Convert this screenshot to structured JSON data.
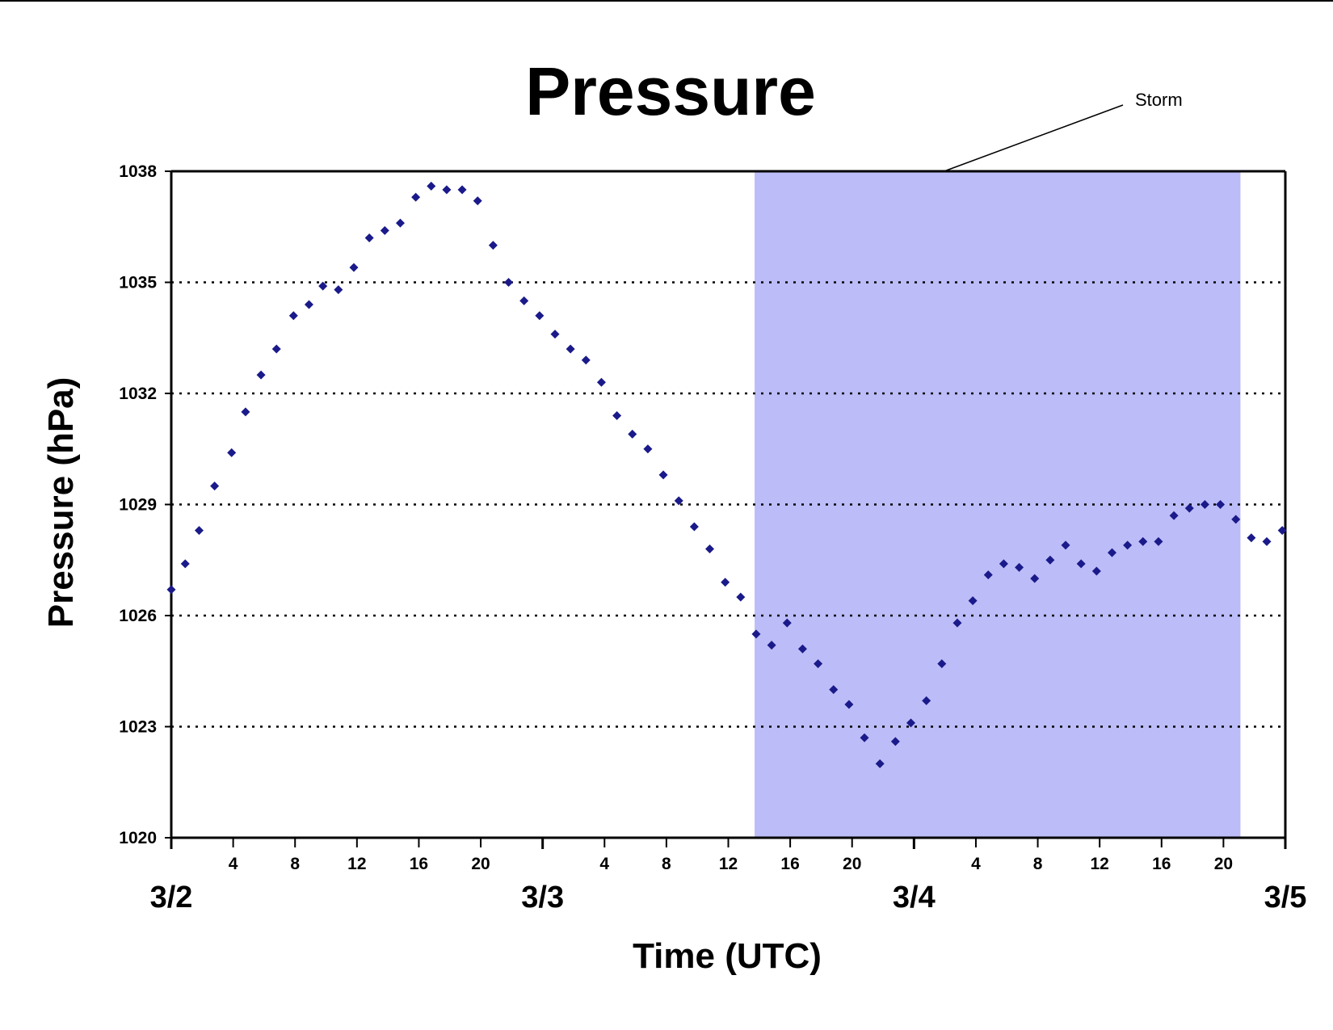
{
  "chart_data": {
    "type": "scatter",
    "title": "Pressure",
    "xlabel": "Time (UTC)",
    "ylabel": "Pressure (hPa)",
    "xlim": [
      0,
      72
    ],
    "ylim": [
      1020,
      1038
    ],
    "yticks": [
      1020,
      1023,
      1026,
      1029,
      1032,
      1035,
      1038
    ],
    "grid": "horizontal dotted",
    "x_hour_ticks": [
      {
        "x": 4,
        "label": "4"
      },
      {
        "x": 8,
        "label": "8"
      },
      {
        "x": 12,
        "label": "12"
      },
      {
        "x": 16,
        "label": "16"
      },
      {
        "x": 20,
        "label": "20"
      },
      {
        "x": 28,
        "label": "4"
      },
      {
        "x": 32,
        "label": "8"
      },
      {
        "x": 36,
        "label": "12"
      },
      {
        "x": 40,
        "label": "16"
      },
      {
        "x": 44,
        "label": "20"
      },
      {
        "x": 52,
        "label": "4"
      },
      {
        "x": 56,
        "label": "8"
      },
      {
        "x": 60,
        "label": "12"
      },
      {
        "x": 64,
        "label": "16"
      },
      {
        "x": 68,
        "label": "20"
      }
    ],
    "x_date_ticks": [
      {
        "x": 0,
        "label": "3/2"
      },
      {
        "x": 24,
        "label": "3/3"
      },
      {
        "x": 48,
        "label": "3/4"
      },
      {
        "x": 72,
        "label": "3/5"
      }
    ],
    "shaded_region": {
      "label": "Storm",
      "x_start": 37.7,
      "x_end": 69.1,
      "color": "#bcbcf8"
    },
    "marker_color": "#1a1a8a",
    "series": [
      {
        "points": [
          [
            0,
            1026.7
          ],
          [
            0.9,
            1027.4
          ],
          [
            1.8,
            1028.3
          ],
          [
            2.8,
            1029.5
          ],
          [
            3.9,
            1030.4
          ],
          [
            4.8,
            1031.5
          ],
          [
            5.8,
            1032.5
          ],
          [
            6.8,
            1033.2
          ],
          [
            7.9,
            1034.1
          ],
          [
            8.9,
            1034.4
          ],
          [
            9.8,
            1034.9
          ],
          [
            10.8,
            1034.8
          ],
          [
            11.8,
            1035.4
          ],
          [
            12.8,
            1036.2
          ],
          [
            13.8,
            1036.4
          ],
          [
            14.8,
            1036.6
          ],
          [
            15.8,
            1037.3
          ],
          [
            16.8,
            1037.6
          ],
          [
            17.8,
            1037.5
          ],
          [
            18.8,
            1037.5
          ],
          [
            19.8,
            1037.2
          ],
          [
            20.8,
            1036.0
          ],
          [
            21.8,
            1035.0
          ],
          [
            22.8,
            1034.5
          ],
          [
            23.8,
            1034.1
          ],
          [
            24.8,
            1033.6
          ],
          [
            25.8,
            1033.2
          ],
          [
            26.8,
            1032.9
          ],
          [
            27.8,
            1032.3
          ],
          [
            28.8,
            1031.4
          ],
          [
            29.8,
            1030.9
          ],
          [
            30.8,
            1030.5
          ],
          [
            31.8,
            1029.8
          ],
          [
            32.8,
            1029.1
          ],
          [
            33.8,
            1028.4
          ],
          [
            34.8,
            1027.8
          ],
          [
            35.8,
            1026.9
          ],
          [
            36.8,
            1026.5
          ],
          [
            37.8,
            1025.5
          ],
          [
            38.8,
            1025.2
          ],
          [
            39.8,
            1025.8
          ],
          [
            40.8,
            1025.1
          ],
          [
            41.8,
            1024.7
          ],
          [
            42.8,
            1024.0
          ],
          [
            43.8,
            1023.6
          ],
          [
            44.8,
            1022.7
          ],
          [
            45.8,
            1022.0
          ],
          [
            46.8,
            1022.6
          ],
          [
            47.8,
            1023.1
          ],
          [
            48.8,
            1023.7
          ],
          [
            49.8,
            1024.7
          ],
          [
            50.8,
            1025.8
          ],
          [
            51.8,
            1026.4
          ],
          [
            52.8,
            1027.1
          ],
          [
            53.8,
            1027.4
          ],
          [
            54.8,
            1027.3
          ],
          [
            55.8,
            1027.0
          ],
          [
            56.8,
            1027.5
          ],
          [
            57.8,
            1027.9
          ],
          [
            58.8,
            1027.4
          ],
          [
            59.8,
            1027.2
          ],
          [
            60.8,
            1027.7
          ],
          [
            61.8,
            1027.9
          ],
          [
            62.8,
            1028.0
          ],
          [
            63.8,
            1028.0
          ],
          [
            64.8,
            1028.7
          ],
          [
            65.8,
            1028.9
          ],
          [
            66.8,
            1029.0
          ],
          [
            67.8,
            1029.0
          ],
          [
            68.8,
            1028.6
          ],
          [
            69.8,
            1028.1
          ],
          [
            70.8,
            1028.0
          ],
          [
            71.8,
            1028.3
          ]
        ]
      }
    ]
  }
}
